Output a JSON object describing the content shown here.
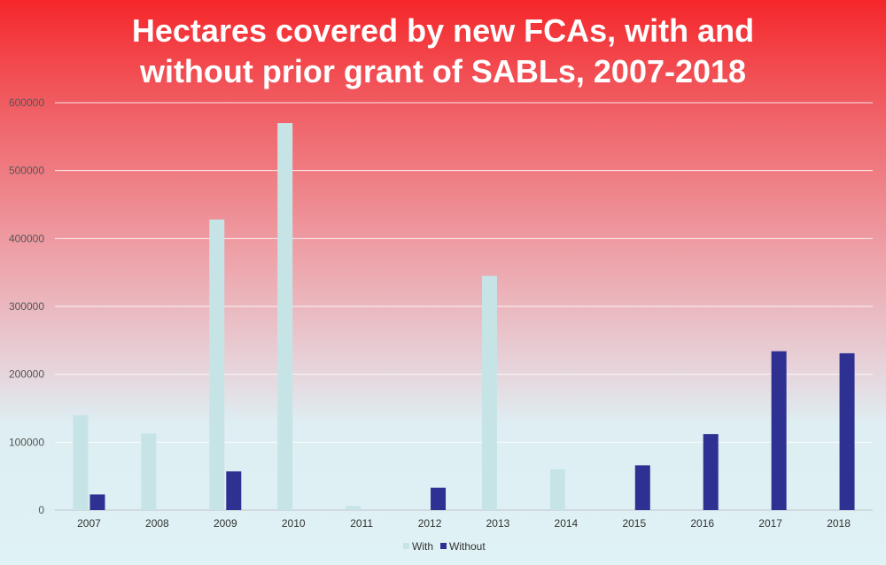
{
  "chart_data": {
    "type": "bar",
    "title_lines": [
      "Hectares covered by new FCAs, with and",
      "without prior grant of SABLs, 2007-2018"
    ],
    "categories": [
      "2007",
      "2008",
      "2009",
      "2010",
      "2011",
      "2012",
      "2013",
      "2014",
      "2015",
      "2016",
      "2017",
      "2018"
    ],
    "series": [
      {
        "name": "With",
        "color": "#c6e4e6",
        "values": [
          140000,
          113000,
          428000,
          570000,
          6000,
          0,
          345000,
          60000,
          0,
          0,
          0,
          0
        ]
      },
      {
        "name": "Without",
        "color": "#2e3192",
        "values": [
          23000,
          0,
          57000,
          0,
          0,
          33000,
          0,
          0,
          66000,
          112000,
          234000,
          231000
        ]
      }
    ],
    "y_ticks": [
      "0",
      "100000",
      "200000",
      "300000",
      "400000",
      "500000",
      "600000"
    ],
    "ylim": [
      0,
      600000
    ],
    "grid": true,
    "legend_position": "bottom-center"
  }
}
